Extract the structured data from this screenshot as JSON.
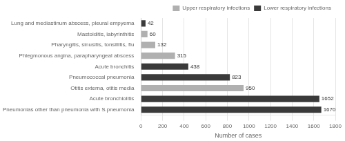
{
  "chart_data": {
    "type": "bar",
    "orientation": "horizontal",
    "categories": [
      "Pneumonias other than pneumonia with S.pneumonia",
      "Acute bronchiolitis",
      "Otitis externa, otitis media",
      "Pneumococcal pneumonia",
      "Acute bronchitis",
      "Phlegmonous angina, parapharyngeal abscess",
      "Pharyngitis, sinusitis, tonsillitis, flu",
      "Mastoiditis, labyrinthitis",
      "Lung and mediastinum abscess, pleural empyema"
    ],
    "series": [
      {
        "name": "Upper respiratory infections",
        "color": "#b0b0b0",
        "values": [
          null,
          null,
          950,
          null,
          null,
          315,
          132,
          60,
          null
        ]
      },
      {
        "name": "Lower respiratory infections",
        "color": "#3a3a3a",
        "values": [
          1670,
          1652,
          null,
          823,
          438,
          null,
          null,
          null,
          42
        ]
      }
    ],
    "xlabel": "Number of cases",
    "xlim": [
      0,
      1800
    ],
    "xticks": [
      0,
      200,
      400,
      600,
      800,
      1000,
      1200,
      1400,
      1600,
      1800
    ],
    "grid": true,
    "legend": "upper right",
    "data_labels": true
  }
}
